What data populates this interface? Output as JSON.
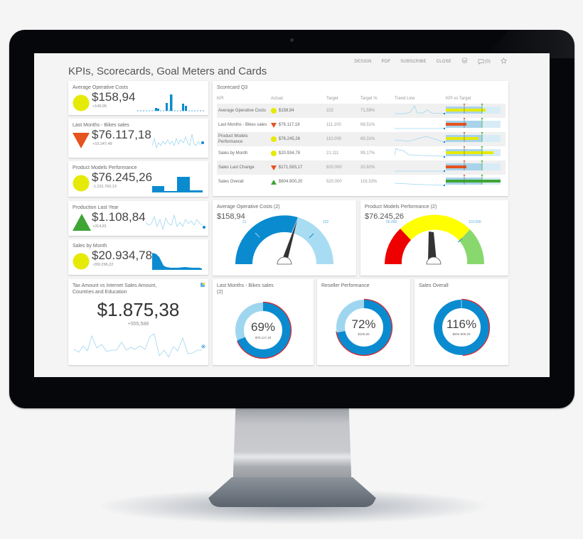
{
  "page": {
    "title": "KPIs, Scorecards, Goal Meters and Cards"
  },
  "topnav": {
    "design": "DESIGN",
    "pdf": "PDF",
    "subscribe": "SUBSCRIBE",
    "close": "CLOSE",
    "comments_count": "(0)"
  },
  "colors": {
    "yellow": "#e6ea07",
    "orange_red": "#e5531f",
    "green": "#3fa535",
    "blue": "#0a8bd0",
    "light_blue": "#9fd6ef",
    "gauge_red": "#ee0000",
    "gauge_yellow": "#ffff00",
    "gauge_green": "#88d86e"
  },
  "kpi_cards": [
    {
      "title": "Average Operative Costs",
      "value": "$158,94",
      "delta": "+149,95",
      "indicator": "yellow-circle",
      "chart": "bar-sparkline"
    },
    {
      "title": "Last Months - Bikes sales",
      "value": "$76.117,18",
      "delta": "+10.247,48",
      "indicator": "red-down-triangle",
      "chart": "line-sparkline"
    },
    {
      "title": "Product Models Performance",
      "value": "$76.245,26",
      "delta": "-1.231.760,13",
      "indicator": "yellow-circle",
      "chart": "bar-sparkline"
    },
    {
      "title": "Production Last Year",
      "value": "$1.108,84",
      "delta": "+314,81",
      "indicator": "green-up-triangle",
      "chart": "line-sparkline"
    },
    {
      "title": "Sales by Month",
      "value": "$20.934,78",
      "delta": "-200.296,22",
      "indicator": "yellow-circle",
      "chart": "area-sparkline"
    }
  ],
  "big_kpi": {
    "title_line1": "Tax Amount vs Internet Sales Amount,",
    "title_line2": "Countries and Education",
    "value": "$1.875,38",
    "delta": "+555,588"
  },
  "scorecard": {
    "title": "Scorecard Q3",
    "columns": [
      "KPI",
      "Actual",
      "Target",
      "Target %",
      "Trend Line",
      "KPI vs Target"
    ],
    "rows": [
      {
        "kpi": "Average Operative Costs",
        "actual": "$158,94",
        "target": "222",
        "target_pct": "71,59%",
        "indicator": "yellow-circle",
        "bar_pct": 56,
        "bar_color": "#e6ea07"
      },
      {
        "kpi": "Last Months - Bikes sales",
        "actual": "$76.117,18",
        "target": "111.100",
        "target_pct": "68,51%",
        "indicator": "red-down-triangle",
        "bar_pct": 29,
        "bar_color": "#e5531f"
      },
      {
        "kpi": "Product Models Performance",
        "actual": "$76.245,26",
        "target": "110.000",
        "target_pct": "69,31%",
        "indicator": "yellow-circle",
        "bar_pct": 46,
        "bar_color": "#e6ea07"
      },
      {
        "kpi": "Sales by Month",
        "actual": "$20.934,78",
        "target": "21.111",
        "target_pct": "99,17%",
        "indicator": "yellow-circle",
        "bar_pct": 67,
        "bar_color": "#e6ea07"
      },
      {
        "kpi": "Sales Last Change",
        "actual": "$171.583,17",
        "target": "820.000",
        "target_pct": "20,92%",
        "indicator": "red-down-triangle",
        "bar_pct": 29,
        "bar_color": "#e5531f"
      },
      {
        "kpi": "Sales Overall",
        "actual": "$604.900,20",
        "target": "520.000",
        "target_pct": "116,33%",
        "indicator": "green-up-triangle",
        "bar_pct": 77,
        "bar_color": "#3fa535"
      }
    ]
  },
  "gauges": [
    {
      "title": "Average Operative Costs (2)",
      "value": "$158,94",
      "min_label": "21",
      "max_label": "222"
    },
    {
      "title": "Product Models Performance (2)",
      "value": "$76.245,26",
      "min_label": "56.000",
      "max_label": "110.000"
    }
  ],
  "donuts": [
    {
      "title_line1": "Last Months - Bikes sales",
      "title_line2": "(2)",
      "pct": "69%",
      "sub": "$76.117,18",
      "fill": 69
    },
    {
      "title_line1": "Reseller Performance",
      "title_line2": "",
      "pct": "72%",
      "sub": "$100,55",
      "fill": 72
    },
    {
      "title_line1": "Sales Overall",
      "title_line2": "",
      "pct": "116%",
      "sub": "$604.900,20",
      "fill": 100
    }
  ]
}
